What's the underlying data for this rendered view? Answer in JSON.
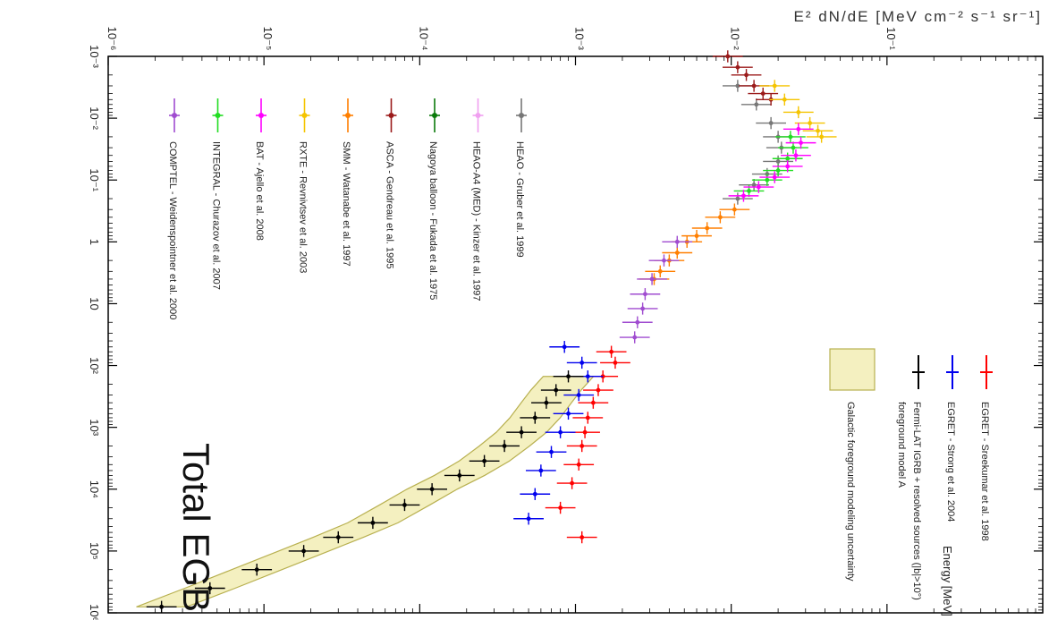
{
  "chart_data": {
    "type": "scatter",
    "orientation": "rotated-90-clockwise",
    "xlabel": "Energy [MeV]",
    "ylabel": "E² dN/dE [MeV cm⁻² s⁻¹ sr⁻¹]",
    "xscale": "log",
    "yscale": "log",
    "xlim": [
      0.001,
      1000000
    ],
    "ylim": [
      1e-06,
      1
    ],
    "x_ticks": [
      "10⁻³",
      "10⁻²",
      "10⁻¹",
      "1",
      "10",
      "10²",
      "10³",
      "10⁴",
      "10⁵",
      "10⁶"
    ],
    "y_ticks": [
      "10⁻⁶",
      "10⁻⁵",
      "10⁻⁴",
      "10⁻³",
      "10⁻²",
      "10⁻¹"
    ],
    "annotation": "Total EGB",
    "legend_upper": [
      {
        "name": "COMPTEL - Weidenspointner et al. 2000",
        "color": "#a04cd0",
        "marker": "cross"
      },
      {
        "name": "INTEGRAL - Churazov et al. 2007",
        "color": "#22dd22",
        "marker": "open-square"
      },
      {
        "name": "BAT - Ajello et al. 2008",
        "color": "#ff00ff",
        "marker": "filled-triangle"
      },
      {
        "name": "RXTE - Revnivtsev et al. 2003",
        "color": "#f5c400",
        "marker": "open-circle"
      },
      {
        "name": "SMM - Watanabe et al. 1997",
        "color": "#ff7f00",
        "marker": "filled-circle"
      },
      {
        "name": "ASCA - Gendreau et al. 1995",
        "color": "#9b1b1b",
        "marker": "filled-triangle"
      },
      {
        "name": "Nagoya balloon - Fukada et al. 1975",
        "color": "#0a7a0a",
        "marker": "filled-square"
      },
      {
        "name": "HEAO-A4 (MED) - Kinzer et al. 1997",
        "color": "#f0a0f0",
        "marker": "cross"
      },
      {
        "name": "HEAO - Gruber et al. 1999",
        "color": "#777777",
        "marker": "x"
      }
    ],
    "legend_lower": [
      {
        "name": "EGRET - Sreekumar et al. 1998",
        "color": "#ff0000",
        "marker": "thick-cross"
      },
      {
        "name": "EGRET - Strong et al. 2004",
        "color": "#0000ee",
        "marker": "cross"
      },
      {
        "name": "Fermi-LAT IGRB + resolved sources (|b|>10°)",
        "name2": "foreground model A",
        "color": "#000000",
        "marker": "open-triangle"
      },
      {
        "name": "Galactic foreground modeling uncertainty",
        "color": "#d8d8a0",
        "marker": "band"
      }
    ],
    "series": [
      {
        "name": "HEAO - Gruber et al. 1999",
        "color": "#777777",
        "points": [
          [
            0.003,
            0.011
          ],
          [
            0.006,
            0.0145
          ],
          [
            0.012,
            0.018
          ],
          [
            0.02,
            0.02
          ],
          [
            0.03,
            0.021
          ],
          [
            0.05,
            0.02
          ],
          [
            0.08,
            0.017
          ],
          [
            0.12,
            0.014
          ],
          [
            0.2,
            0.011
          ]
        ]
      },
      {
        "name": "ASCA - Gendreau et al. 1995",
        "color": "#9b1b1b",
        "points": [
          [
            0.001,
            0.0095
          ],
          [
            0.0015,
            0.011
          ],
          [
            0.002,
            0.0125
          ],
          [
            0.003,
            0.014
          ],
          [
            0.004,
            0.016
          ],
          [
            0.005,
            0.018
          ]
        ]
      },
      {
        "name": "RXTE - Revnivtsev et al. 2003",
        "color": "#f5c400",
        "points": [
          [
            0.003,
            0.019
          ],
          [
            0.005,
            0.022
          ],
          [
            0.008,
            0.027
          ],
          [
            0.012,
            0.032
          ],
          [
            0.016,
            0.036
          ],
          [
            0.02,
            0.038
          ]
        ]
      },
      {
        "name": "INTEGRAL - Churazov et al. 2007",
        "color": "#22dd22",
        "points": [
          [
            0.02,
            0.024
          ],
          [
            0.03,
            0.025
          ],
          [
            0.045,
            0.023
          ],
          [
            0.07,
            0.02
          ],
          [
            0.1,
            0.017
          ],
          [
            0.15,
            0.013
          ]
        ]
      },
      {
        "name": "BAT - Ajello et al. 2008",
        "color": "#ff00ff",
        "points": [
          [
            0.015,
            0.027
          ],
          [
            0.025,
            0.028
          ],
          [
            0.04,
            0.026
          ],
          [
            0.06,
            0.023
          ],
          [
            0.09,
            0.019
          ],
          [
            0.13,
            0.015
          ],
          [
            0.18,
            0.012
          ]
        ]
      },
      {
        "name": "SMM - Watanabe et al. 1997",
        "color": "#ff7f00",
        "points": [
          [
            0.3,
            0.0105
          ],
          [
            0.4,
            0.0085
          ],
          [
            0.6,
            0.007
          ],
          [
            0.8,
            0.006
          ],
          [
            1.0,
            0.0052
          ],
          [
            1.5,
            0.0045
          ],
          [
            2.0,
            0.004
          ],
          [
            3.0,
            0.0035
          ],
          [
            4.0,
            0.0032
          ]
        ]
      },
      {
        "name": "COMPTEL - Weidenspointner et al. 2000",
        "color": "#a04cd0",
        "points": [
          [
            1.0,
            0.0045
          ],
          [
            2.0,
            0.0037
          ],
          [
            4.0,
            0.0031
          ],
          [
            7.0,
            0.0028
          ],
          [
            12,
            0.0027
          ],
          [
            20,
            0.0025
          ],
          [
            35,
            0.0024
          ]
        ]
      },
      {
        "name": "EGRET - Sreekumar et al. 1998",
        "color": "#ff0000",
        "points": [
          [
            60,
            0.0017
          ],
          [
            90,
            0.0018
          ],
          [
            150,
            0.0015
          ],
          [
            250,
            0.0014
          ],
          [
            400,
            0.0013
          ],
          [
            700,
            0.0012
          ],
          [
            1200,
            0.00115
          ],
          [
            2000,
            0.0011
          ],
          [
            4000,
            0.00105
          ],
          [
            8000,
            0.00095
          ],
          [
            20000,
            0.0008
          ],
          [
            60000,
            0.0011
          ]
        ]
      },
      {
        "name": "EGRET - Strong et al. 2004",
        "color": "#0000ee",
        "points": [
          [
            50,
            0.00085
          ],
          [
            90,
            0.0011
          ],
          [
            150,
            0.0012
          ],
          [
            300,
            0.00105
          ],
          [
            600,
            0.0009
          ],
          [
            1200,
            0.0008
          ],
          [
            2500,
            0.0007
          ],
          [
            5000,
            0.0006
          ],
          [
            12000,
            0.00055
          ],
          [
            30000,
            0.0005
          ]
        ]
      },
      {
        "name": "Fermi-LAT IGRB + resolved sources (|b|>10°)",
        "color": "#000000",
        "points": [
          [
            150,
            0.0009
          ],
          [
            250,
            0.00075
          ],
          [
            400,
            0.00065
          ],
          [
            700,
            0.00055
          ],
          [
            1200,
            0.00045
          ],
          [
            2000,
            0.00035
          ],
          [
            3500,
            0.00026
          ],
          [
            6000,
            0.00018
          ],
          [
            10000,
            0.00012
          ],
          [
            18000,
            8e-05
          ],
          [
            35000,
            5e-05
          ],
          [
            60000,
            3e-05
          ],
          [
            100000,
            1.8e-05
          ],
          [
            200000,
            9e-06
          ],
          [
            400000,
            4.5e-06
          ],
          [
            800000,
            2.2e-06
          ]
        ]
      }
    ]
  }
}
